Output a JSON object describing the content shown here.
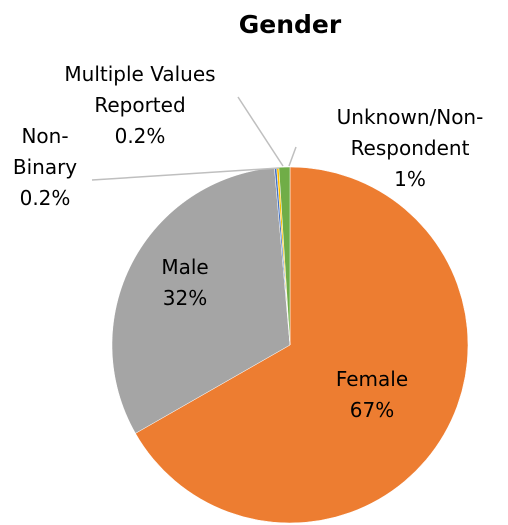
{
  "chart_data": {
    "type": "pie",
    "title": "Gender",
    "categories": [
      "Female",
      "Male",
      "Non-Binary",
      "Multiple Values Reported",
      "Unknown/Non-Respondent"
    ],
    "values": [
      67,
      32,
      0.2,
      0.2,
      1
    ],
    "value_labels": [
      "67%",
      "32%",
      "0.2%",
      "0.2%",
      "1%"
    ],
    "colors": [
      "#ED7D31",
      "#A5A5A5",
      "#4472C4",
      "#FFC000",
      "#70AD47"
    ]
  }
}
